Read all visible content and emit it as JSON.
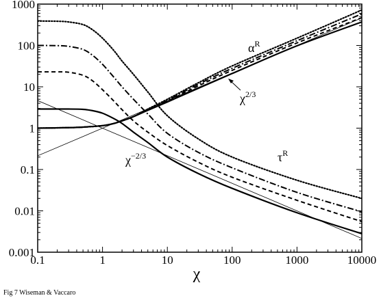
{
  "chart_data": {
    "type": "line",
    "xscale": "log",
    "yscale": "log",
    "xlim": [
      0.1,
      10000
    ],
    "ylim": [
      0.001,
      1000
    ],
    "xlabel": "χ",
    "ylabel": "",
    "xticks": [
      "0.1",
      "1",
      "10",
      "100",
      "1000",
      "10000"
    ],
    "yticks": [
      "0.001",
      "0.01",
      "0.1",
      "1",
      "10",
      "100",
      "1000"
    ],
    "grid": false,
    "legend": "none",
    "annotations": {
      "alpha": {
        "base": "α",
        "sup": "R"
      },
      "chi_pos": {
        "base": "χ",
        "sup": "2/3"
      },
      "chi_neg": {
        "base": "χ",
        "sup": "−2/3"
      },
      "tau": {
        "base": "τ",
        "sup": "R"
      }
    },
    "series": [
      {
        "group": "alpha",
        "style": "solid",
        "x": [
          0.1,
          0.3,
          0.5,
          1,
          1.5,
          2,
          3,
          5,
          10,
          30,
          100,
          1000,
          10000
        ],
        "y": [
          1.0,
          1.03,
          1.06,
          1.15,
          1.3,
          1.5,
          1.9,
          2.7,
          4.3,
          9.2,
          21,
          98,
          370
        ]
      },
      {
        "group": "alpha",
        "style": "dashed",
        "x": [
          0.1,
          0.3,
          0.5,
          1,
          1.5,
          2,
          3,
          5,
          10,
          30,
          100,
          1000,
          10000
        ],
        "y": [
          1.0,
          1.03,
          1.06,
          1.15,
          1.3,
          1.5,
          1.9,
          2.8,
          4.5,
          10.5,
          25,
          115,
          470
        ]
      },
      {
        "group": "alpha",
        "style": "dashdot",
        "x": [
          0.1,
          0.3,
          0.5,
          1,
          1.5,
          2,
          3,
          5,
          10,
          30,
          100,
          1000,
          10000
        ],
        "y": [
          1.0,
          1.03,
          1.06,
          1.15,
          1.3,
          1.5,
          1.9,
          2.8,
          4.7,
          11.5,
          28,
          130,
          580
        ]
      },
      {
        "group": "alpha",
        "style": "dotted",
        "x": [
          0.1,
          0.3,
          0.5,
          1,
          1.5,
          2,
          3,
          5,
          10,
          30,
          100,
          1000,
          10000
        ],
        "y": [
          1.0,
          1.03,
          1.06,
          1.15,
          1.3,
          1.5,
          1.9,
          2.9,
          5.0,
          12.5,
          32,
          150,
          720
        ]
      },
      {
        "group": "reference",
        "style": "thin",
        "x": [
          0.1,
          10000
        ],
        "y": [
          0.215,
          464
        ]
      },
      {
        "group": "reference",
        "style": "thin",
        "x": [
          0.1,
          10000
        ],
        "y": [
          4.64,
          0.00215
        ]
      },
      {
        "group": "tau",
        "style": "solid",
        "x": [
          0.1,
          0.3,
          0.5,
          0.7,
          1,
          1.5,
          2,
          3,
          5,
          10,
          30,
          100,
          1000,
          10000
        ],
        "y": [
          2.9,
          2.9,
          2.85,
          2.65,
          2.3,
          1.7,
          1.3,
          0.8,
          0.45,
          0.2,
          0.08,
          0.035,
          0.009,
          0.0028
        ]
      },
      {
        "group": "tau",
        "style": "dashed",
        "x": [
          0.1,
          0.2,
          0.3,
          0.5,
          0.7,
          1,
          1.5,
          2,
          3,
          5,
          10,
          30,
          100,
          1000,
          10000
        ],
        "y": [
          23,
          23,
          22.5,
          19,
          14,
          8.5,
          4.5,
          2.8,
          1.5,
          0.8,
          0.38,
          0.15,
          0.065,
          0.018,
          0.0055
        ]
      },
      {
        "group": "tau",
        "style": "dashdot",
        "x": [
          0.1,
          0.2,
          0.3,
          0.5,
          0.7,
          1,
          1.5,
          2,
          3,
          5,
          10,
          30,
          100,
          1000,
          10000
        ],
        "y": [
          100,
          99,
          95,
          80,
          58,
          35,
          17,
          10,
          5,
          2.2,
          0.75,
          0.26,
          0.11,
          0.028,
          0.0095
        ]
      },
      {
        "group": "tau",
        "style": "dotted",
        "x": [
          0.1,
          0.2,
          0.3,
          0.5,
          0.7,
          1,
          1.5,
          2,
          3,
          5,
          10,
          30,
          100,
          1000,
          10000
        ],
        "y": [
          390,
          385,
          370,
          320,
          240,
          150,
          75,
          42,
          20,
          7.5,
          2.0,
          0.55,
          0.2,
          0.055,
          0.02
        ]
      }
    ]
  },
  "caption": "Fig 7  Wiseman & Vaccaro"
}
